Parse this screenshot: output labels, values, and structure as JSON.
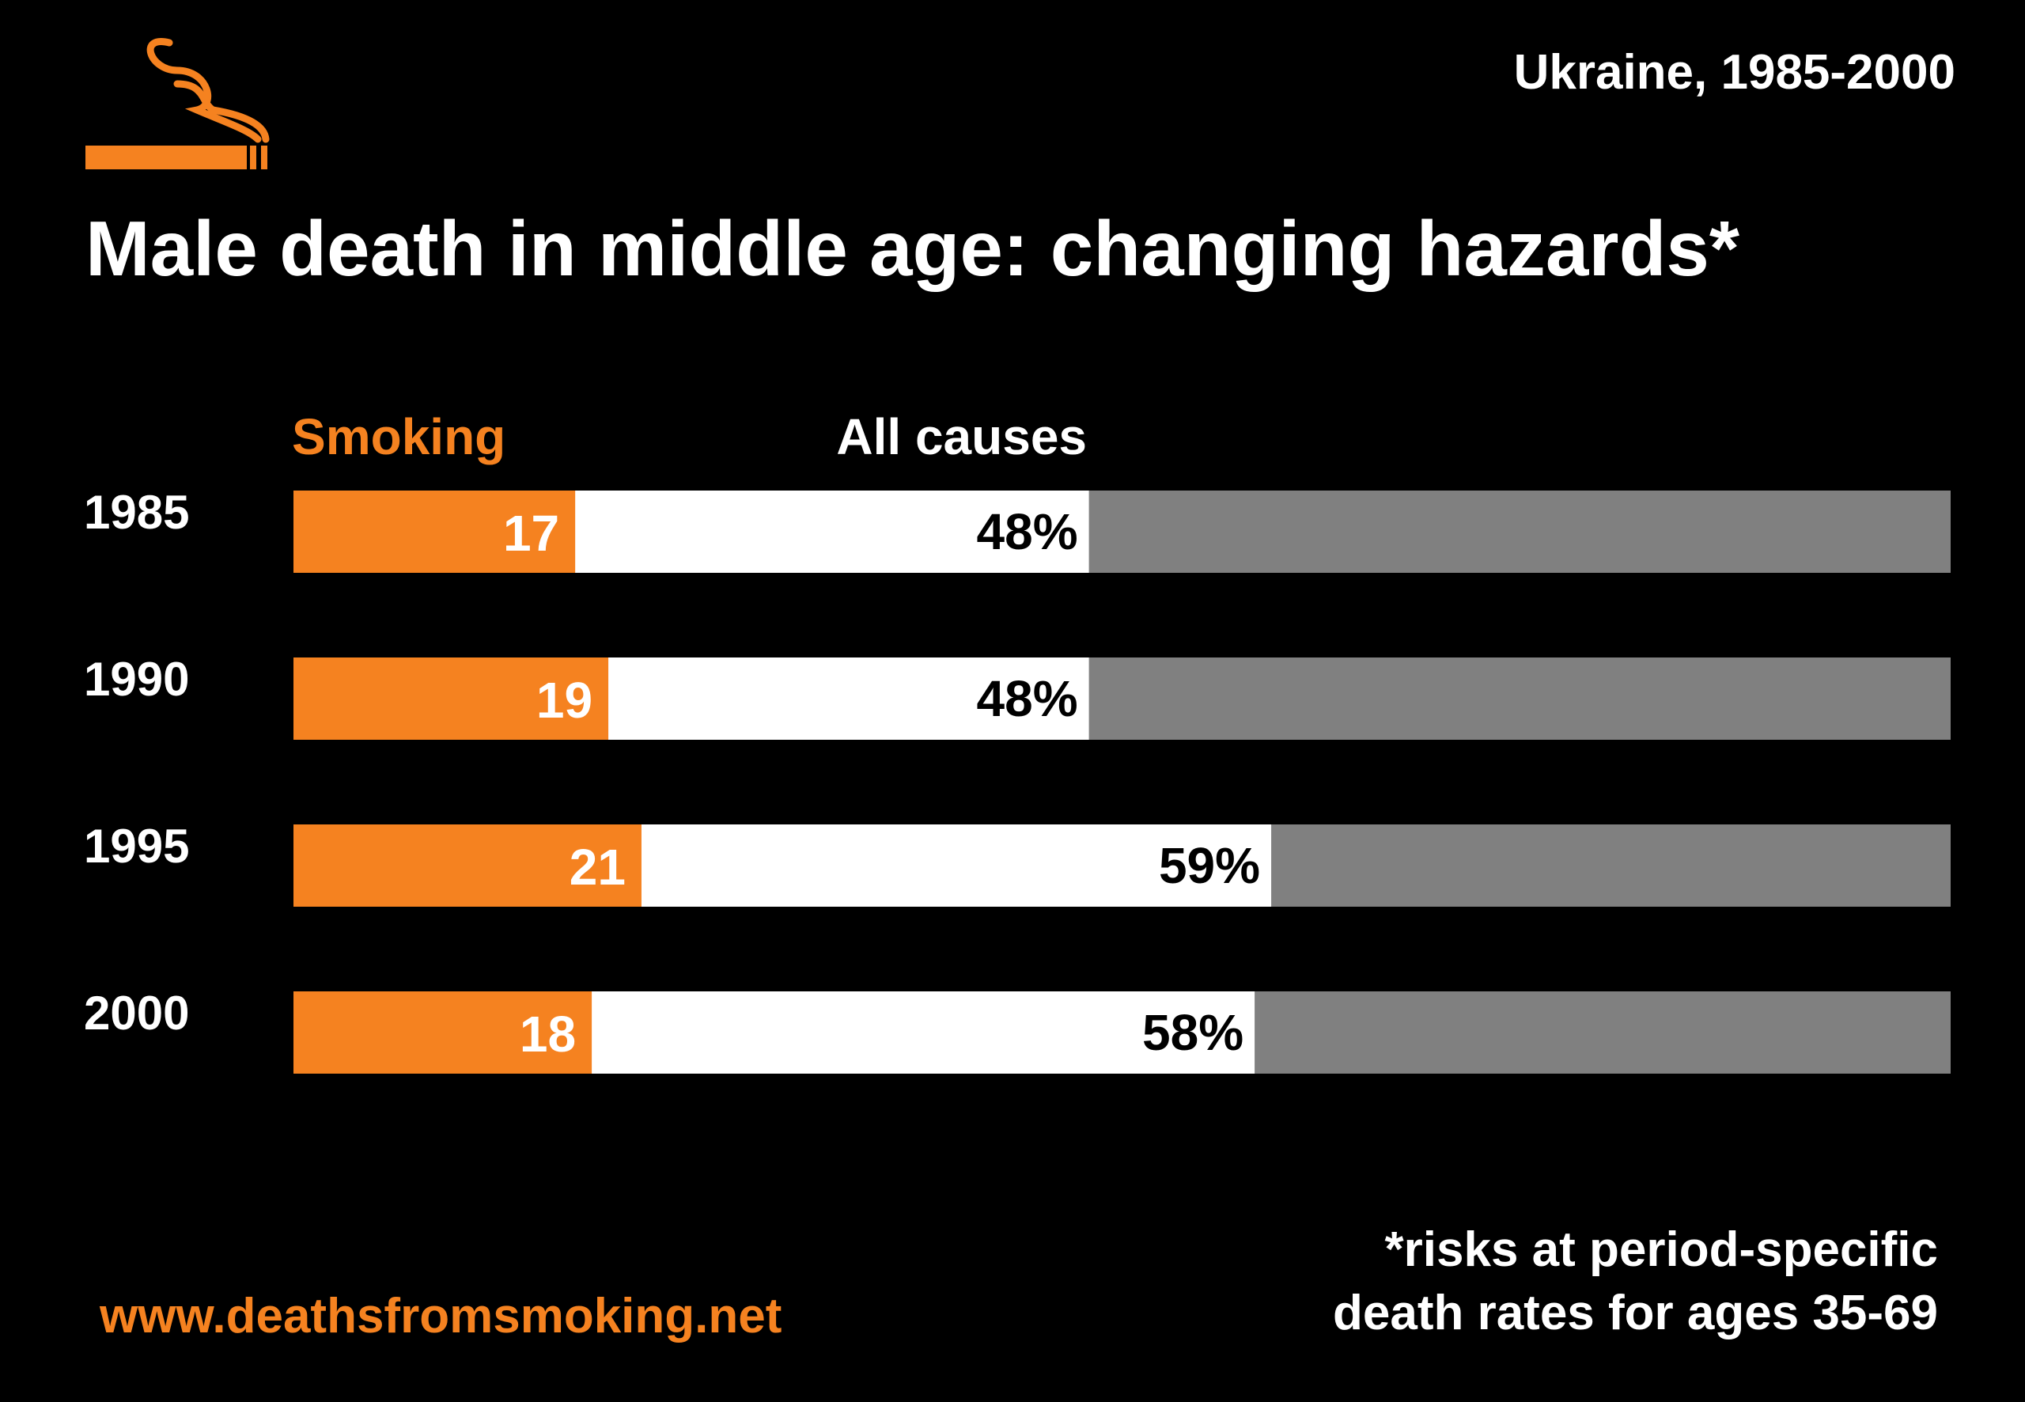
{
  "header": {
    "logo_icon": "cigarette-icon",
    "subtitle": "Ukraine, 1985-2000",
    "title": "Male death in middle age: changing hazards*"
  },
  "colors": {
    "background": "#000000",
    "smoking": "#f58220",
    "all_causes": "#ffffff",
    "remainder": "#808080",
    "text": "#ffffff",
    "value_text": "#000000"
  },
  "chart_data": {
    "type": "bar",
    "orientation": "horizontal",
    "stacked": true,
    "categories": [
      "1985",
      "1990",
      "1995",
      "2000"
    ],
    "series": [
      {
        "name": "Smoking",
        "values": [
          17,
          19,
          21,
          18
        ],
        "labels": [
          "17",
          "19",
          "21",
          "18"
        ]
      },
      {
        "name": "All causes",
        "values": [
          48,
          48,
          59,
          58
        ],
        "labels": [
          "48%",
          "48%",
          "59%",
          "58%"
        ]
      }
    ],
    "xlim": [
      0,
      100
    ],
    "grid": false,
    "legend": "top"
  },
  "footer": {
    "footnote_line1": "*risks at period-specific",
    "footnote_line2": "death rates for ages 35-69",
    "website": "www.deathsfromsmoking.net"
  }
}
